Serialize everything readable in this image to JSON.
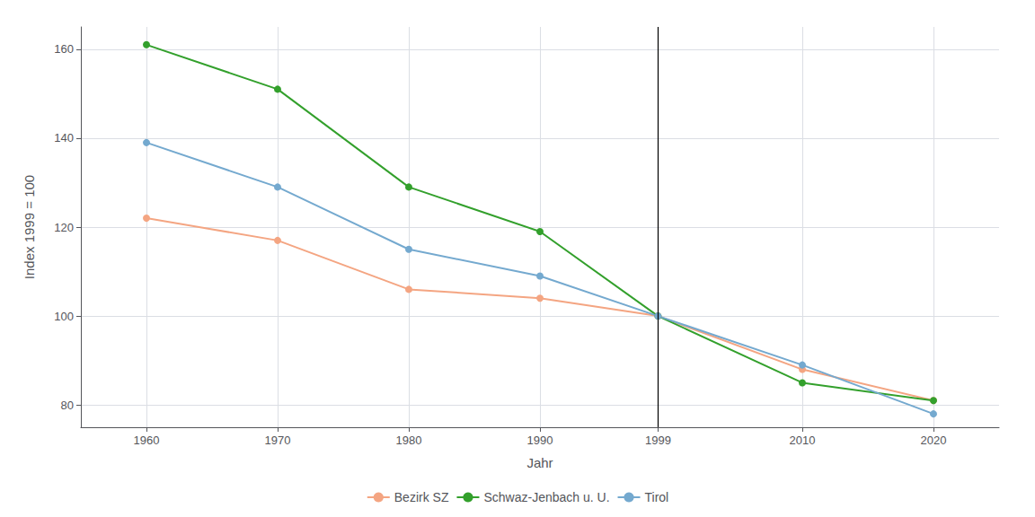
{
  "chart_data": {
    "type": "line",
    "xlabel": "Jahr",
    "ylabel": "Index 1999 = 100",
    "x": [
      1960,
      1970,
      1980,
      1990,
      1999,
      2010,
      2020
    ],
    "series": [
      {
        "name": "Bezirk SZ",
        "color": "#F4A582",
        "marker": "circle",
        "values": [
          122,
          117,
          106,
          104,
          100,
          88,
          81
        ]
      },
      {
        "name": "Schwaz-Jenbach u. U.",
        "color": "#33A02C",
        "marker": "circle",
        "values": [
          161,
          151,
          129,
          119,
          100,
          85,
          81
        ]
      },
      {
        "name": "Tirol",
        "color": "#74A9CF",
        "marker": "circle",
        "values": [
          139,
          129,
          115,
          109,
          100,
          89,
          78
        ]
      }
    ],
    "xlim": [
      1955,
      2025
    ],
    "ylim": [
      75,
      165
    ],
    "xticks": [
      1960,
      1970,
      1980,
      1990,
      1999,
      2010,
      2020
    ],
    "yticks": [
      80,
      100,
      120,
      140,
      160
    ],
    "vline": 1999,
    "grid": true,
    "legend": "bottom"
  }
}
